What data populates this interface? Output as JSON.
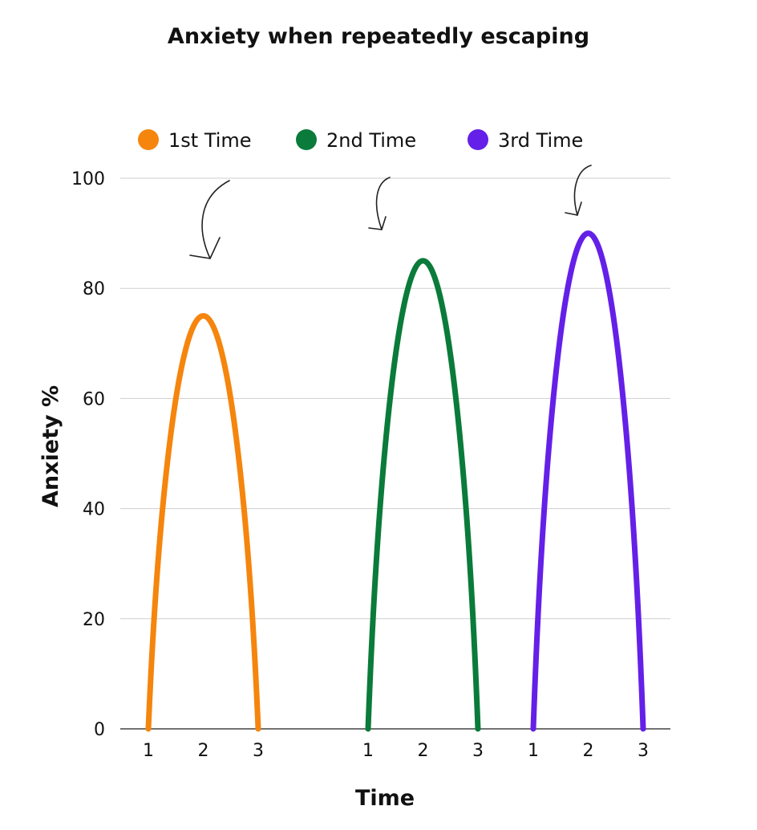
{
  "chart_data": {
    "type": "line",
    "title": "Anxiety when repeatedly escaping",
    "xlabel": "Time",
    "ylabel": "Anxiety %",
    "ylim": [
      0,
      100
    ],
    "yticks": [
      0,
      20,
      40,
      60,
      80,
      100
    ],
    "grid": true,
    "legend_position": "top",
    "series": [
      {
        "name": "1st Time",
        "color": "#F5850D",
        "x": [
          1,
          2,
          3
        ],
        "y": [
          0,
          75,
          0
        ]
      },
      {
        "name": "2nd Time",
        "color": "#0A7B3A",
        "x": [
          1,
          2,
          3
        ],
        "y": [
          0,
          85,
          0
        ]
      },
      {
        "name": "3rd Time",
        "color": "#6420E8",
        "x": [
          1,
          2,
          3
        ],
        "y": [
          0,
          90,
          0
        ]
      }
    ],
    "annotations": [
      {
        "type": "hand-drawn-arrow",
        "points_to": "1st Time peak"
      },
      {
        "type": "hand-drawn-arrow",
        "points_to": "2nd Time peak"
      },
      {
        "type": "hand-drawn-arrow",
        "points_to": "3rd Time peak"
      }
    ]
  }
}
